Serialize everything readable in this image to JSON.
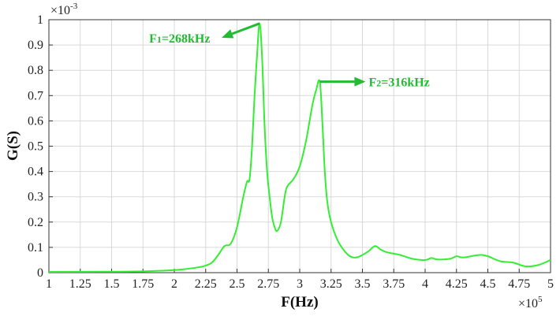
{
  "chart_data": {
    "type": "line",
    "title": "",
    "xlabel": "F(Hz)",
    "ylabel": "G(S)",
    "x_multiplier": "×10",
    "x_exponent": "5",
    "y_multiplier": "×10",
    "y_exponent": "-3",
    "xlim": [
      1,
      5
    ],
    "ylim": [
      0,
      1
    ],
    "x_ticks": [
      "1",
      "1.25",
      "1.5",
      "1.75",
      "2",
      "2.25",
      "2.5",
      "2.75",
      "3",
      "3.25",
      "3.5",
      "3.75",
      "4",
      "4.25",
      "4.5",
      "4.75",
      "5"
    ],
    "y_ticks": [
      "0",
      "0.1",
      "0.2",
      "0.3",
      "0.4",
      "0.5",
      "0.6",
      "0.7",
      "0.8",
      "0.9",
      "1"
    ],
    "grid": true,
    "line_color": "#33ee33",
    "annotation_color": "#22bb33",
    "series": [
      {
        "x": [
          1.0,
          1.5,
          1.8,
          2.0,
          2.1,
          2.2,
          2.25,
          2.3,
          2.35,
          2.4,
          2.45,
          2.5,
          2.55,
          2.58,
          2.6,
          2.62,
          2.64,
          2.66,
          2.68,
          2.7,
          2.72,
          2.74,
          2.76,
          2.78,
          2.8,
          2.82,
          2.85,
          2.88,
          2.9,
          2.95,
          3.0,
          3.05,
          3.1,
          3.13,
          3.16,
          3.18,
          3.2,
          3.22,
          3.25,
          3.3,
          3.35,
          3.4,
          3.45,
          3.5,
          3.55,
          3.6,
          3.65,
          3.7,
          3.8,
          3.9,
          4.0,
          4.05,
          4.1,
          4.2,
          4.25,
          4.3,
          4.4,
          4.45,
          4.5,
          4.6,
          4.7,
          4.8,
          4.9,
          5.0
        ],
        "y": [
          0.003,
          0.004,
          0.006,
          0.01,
          0.015,
          0.022,
          0.028,
          0.04,
          0.07,
          0.105,
          0.115,
          0.18,
          0.3,
          0.36,
          0.37,
          0.5,
          0.7,
          0.86,
          0.985,
          0.85,
          0.58,
          0.4,
          0.3,
          0.22,
          0.18,
          0.165,
          0.2,
          0.3,
          0.34,
          0.37,
          0.42,
          0.52,
          0.66,
          0.72,
          0.755,
          0.6,
          0.4,
          0.28,
          0.2,
          0.13,
          0.09,
          0.065,
          0.06,
          0.07,
          0.085,
          0.105,
          0.09,
          0.08,
          0.07,
          0.055,
          0.05,
          0.058,
          0.052,
          0.055,
          0.065,
          0.06,
          0.068,
          0.07,
          0.065,
          0.045,
          0.04,
          0.025,
          0.03,
          0.05
        ]
      }
    ],
    "annotations": [
      {
        "label": "F",
        "sub": "1",
        "rest": "=268kHz",
        "x": 2.68,
        "y": 0.985
      },
      {
        "label": "F",
        "sub": "2",
        "rest": "=316kHz",
        "x": 3.16,
        "y": 0.755
      }
    ]
  }
}
